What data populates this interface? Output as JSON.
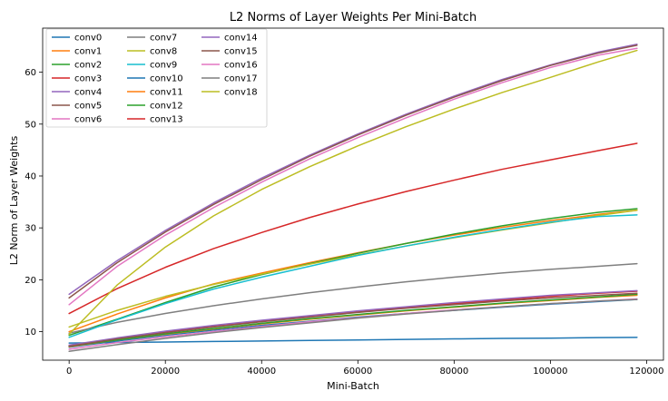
{
  "chart_data": {
    "type": "line",
    "title": "L2 Norms of Layer Weights Per Mini-Batch",
    "xlabel": "Mini-Batch",
    "ylabel": "L2 Norm of Layer Weights",
    "xlim": [
      -5500,
      123500
    ],
    "ylim": [
      4.5,
      68.5
    ],
    "xticks": [
      0,
      20000,
      40000,
      60000,
      80000,
      100000,
      120000
    ],
    "yticks": [
      10,
      20,
      30,
      40,
      50,
      60
    ],
    "x": [
      0,
      10000,
      20000,
      30000,
      40000,
      50000,
      60000,
      70000,
      80000,
      90000,
      100000,
      110000,
      118000
    ],
    "legend_position": "top-left",
    "series": [
      {
        "name": "conv0",
        "color": "#1f77b4",
        "values": [
          7.8,
          7.9,
          8.0,
          8.1,
          8.2,
          8.3,
          8.4,
          8.5,
          8.6,
          8.7,
          8.75,
          8.85,
          8.9
        ]
      },
      {
        "name": "conv1",
        "color": "#ff7f0e",
        "values": [
          10.0,
          13.4,
          16.5,
          19.2,
          21.3,
          23.3,
          25.2,
          27.0,
          28.6,
          30.1,
          31.4,
          32.6,
          33.4
        ]
      },
      {
        "name": "conv2",
        "color": "#2ca02c",
        "values": [
          9.3,
          12.4,
          15.6,
          18.6,
          21.0,
          23.1,
          25.1,
          27.0,
          28.8,
          30.4,
          31.8,
          33.0,
          33.7
        ]
      },
      {
        "name": "conv3",
        "color": "#d62728",
        "values": [
          13.5,
          18.3,
          22.4,
          26.0,
          29.1,
          32.0,
          34.6,
          37.0,
          39.2,
          41.3,
          43.1,
          44.9,
          46.3
        ]
      },
      {
        "name": "conv4",
        "color": "#9467bd",
        "values": [
          17.2,
          23.7,
          29.5,
          34.8,
          39.6,
          44.0,
          48.1,
          51.9,
          55.4,
          58.6,
          61.4,
          63.9,
          65.4
        ]
      },
      {
        "name": "conv5",
        "color": "#8c564b",
        "values": [
          16.5,
          23.3,
          29.2,
          34.5,
          39.3,
          43.8,
          47.9,
          51.7,
          55.2,
          58.4,
          61.3,
          63.7,
          65.2
        ]
      },
      {
        "name": "conv6",
        "color": "#e377c2",
        "values": [
          15.2,
          22.6,
          28.6,
          33.9,
          38.8,
          43.3,
          47.4,
          51.2,
          54.8,
          58.0,
          60.9,
          63.3,
          64.6
        ]
      },
      {
        "name": "conv7",
        "color": "#7f7f7f",
        "values": [
          9.7,
          11.8,
          13.5,
          15.0,
          16.3,
          17.5,
          18.6,
          19.6,
          20.5,
          21.3,
          22.0,
          22.6,
          23.1
        ]
      },
      {
        "name": "conv8",
        "color": "#bcbd22",
        "values": [
          10.9,
          14.1,
          16.8,
          19.1,
          21.1,
          23.0,
          24.8,
          26.5,
          28.1,
          29.6,
          31.0,
          32.4,
          33.4
        ]
      },
      {
        "name": "conv9",
        "color": "#17becf",
        "values": [
          8.9,
          12.3,
          15.4,
          18.2,
          20.5,
          22.6,
          24.7,
          26.5,
          28.2,
          29.7,
          31.1,
          32.2,
          32.5
        ]
      },
      {
        "name": "conv10",
        "color": "#1f77b4",
        "values": [
          7.0,
          8.2,
          9.3,
          10.3,
          11.2,
          12.0,
          12.8,
          13.5,
          14.1,
          14.7,
          15.3,
          15.8,
          16.2
        ]
      },
      {
        "name": "conv11",
        "color": "#ff7f0e",
        "values": [
          7.1,
          8.4,
          9.5,
          10.5,
          11.5,
          12.4,
          13.2,
          14.0,
          14.7,
          15.4,
          16.0,
          16.6,
          17.0
        ]
      },
      {
        "name": "conv12",
        "color": "#2ca02c",
        "values": [
          7.2,
          8.4,
          9.6,
          10.6,
          11.6,
          12.5,
          13.3,
          14.1,
          14.8,
          15.5,
          16.1,
          16.7,
          17.2
        ]
      },
      {
        "name": "conv13",
        "color": "#d62728",
        "values": [
          7.3,
          8.7,
          9.9,
          11.0,
          12.0,
          12.9,
          13.8,
          14.6,
          15.4,
          16.1,
          16.8,
          17.4,
          17.8
        ]
      },
      {
        "name": "conv14",
        "color": "#9467bd",
        "values": [
          7.4,
          8.8,
          10.1,
          11.2,
          12.2,
          13.1,
          14.0,
          14.8,
          15.6,
          16.3,
          17.0,
          17.5,
          17.9
        ]
      },
      {
        "name": "conv15",
        "color": "#8c564b",
        "values": [
          7.2,
          8.6,
          9.8,
          10.9,
          11.9,
          12.8,
          13.7,
          14.5,
          15.2,
          15.9,
          16.5,
          17.0,
          17.4
        ]
      },
      {
        "name": "conv16",
        "color": "#e377c2",
        "values": [
          6.6,
          7.9,
          9.0,
          10.0,
          11.0,
          11.9,
          12.7,
          13.5,
          14.2,
          14.8,
          15.4,
          15.9,
          16.3
        ]
      },
      {
        "name": "conv17",
        "color": "#7f7f7f",
        "values": [
          6.2,
          7.5,
          8.7,
          9.8,
          10.8,
          11.7,
          12.6,
          13.4,
          14.1,
          14.8,
          15.4,
          15.9,
          16.2
        ]
      },
      {
        "name": "conv18",
        "color": "#bcbd22",
        "values": [
          9.5,
          19.0,
          26.3,
          32.3,
          37.4,
          41.8,
          45.8,
          49.5,
          52.9,
          56.1,
          59.0,
          62.0,
          64.2
        ]
      }
    ]
  }
}
